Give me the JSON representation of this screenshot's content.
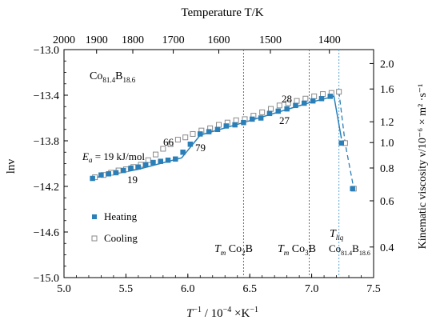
{
  "chart_data": {
    "type": "scatter",
    "title": "",
    "xlabel_main": "T",
    "xlabel_sup": "−1",
    "xlabel_rest": " / 10",
    "xlabel_sup2": "−4",
    "xlabel_unit": " ×K",
    "xlabel_sup3": "−1",
    "ylabel": "lnν",
    "top_label": "Temperature T/K",
    "right_label": "Kinematic viscosity ν/10⁻⁶ × m² ·s⁻¹",
    "xlim": [
      5.0,
      7.5
    ],
    "ylim": [
      -15.0,
      -13.0
    ],
    "x_ticks": [
      "5.0",
      "5.5",
      "6.0",
      "6.5",
      "7.0",
      "7.5"
    ],
    "y_ticks": [
      "−13.0",
      "−13.4",
      "−13.8",
      "−14.2",
      "−14.6",
      "−15.0"
    ],
    "top_ticks": [
      "2000",
      "1900",
      "1800",
      "1700",
      "1600",
      "1500",
      "1400"
    ],
    "right_ticks": [
      "2.0",
      "1.6",
      "1.2",
      "1.0",
      "0.8",
      "0.6",
      "0.4"
    ],
    "composition": {
      "base": "Co",
      "sub1": "81.4",
      "mid": "B",
      "sub2": "18.6"
    },
    "annotations": {
      "ea_prefix": "E",
      "ea_sub": "a",
      "ea_rest": " = 19 kJ/mol",
      "n19": "19",
      "n66": "66",
      "n79": "79",
      "n28": "28",
      "n27": "27"
    },
    "vlines": [
      {
        "x": 6.45,
        "color": "#6f6f6f",
        "label_T": "T",
        "label_sub": "m",
        "label_rest": " Co",
        "label_sub2": "2",
        "label_end": "B"
      },
      {
        "x": 6.98,
        "color": "#6f6f6f",
        "label_T": "T",
        "label_sub": "m",
        "label_rest": " Co",
        "label_sub2": "3",
        "label_end": "B"
      },
      {
        "x": 7.22,
        "color": "#5aa7d6",
        "label_T": "T",
        "label_sub": "liq",
        "label_rest": "Co",
        "label_sub2": "81.4",
        "label_end": "B",
        "label_sub3": "18.6"
      }
    ],
    "legend": {
      "heating": "Heating",
      "cooling": "Cooling"
    },
    "colors": {
      "heating": "#2a7fb8",
      "cooling": "#8a8a8a"
    },
    "series": [
      {
        "name": "Heating",
        "x": [
          5.23,
          5.3,
          5.36,
          5.42,
          5.48,
          5.54,
          5.6,
          5.66,
          5.72,
          5.78,
          5.84,
          5.9,
          5.96,
          6.02,
          6.1,
          6.17,
          6.24,
          6.31,
          6.38,
          6.45,
          6.52,
          6.59,
          6.66,
          6.73,
          6.8,
          6.87,
          6.94,
          7.01,
          7.08,
          7.15,
          7.24,
          7.33
        ],
        "y": [
          -14.13,
          -14.1,
          -14.09,
          -14.08,
          -14.06,
          -14.04,
          -14.03,
          -14.01,
          -13.99,
          -13.98,
          -13.97,
          -13.96,
          -13.9,
          -13.83,
          -13.74,
          -13.72,
          -13.7,
          -13.67,
          -13.66,
          -13.64,
          -13.61,
          -13.6,
          -13.56,
          -13.54,
          -13.52,
          -13.49,
          -13.47,
          -13.45,
          -13.43,
          -13.41,
          -13.82,
          -14.22
        ]
      },
      {
        "name": "Cooling",
        "x": [
          5.25,
          5.32,
          5.38,
          5.44,
          5.5,
          5.56,
          5.62,
          5.68,
          5.74,
          5.8,
          5.86,
          5.92,
          5.98,
          6.04,
          6.11,
          6.18,
          6.25,
          6.32,
          6.39,
          6.46,
          6.53,
          6.6,
          6.67,
          6.74,
          6.81,
          6.88,
          6.95,
          7.02,
          7.09,
          7.16,
          7.22,
          7.27,
          7.34
        ],
        "y": [
          -14.12,
          -14.1,
          -14.08,
          -14.06,
          -14.05,
          -14.03,
          -14.01,
          -13.97,
          -13.92,
          -13.87,
          -13.83,
          -13.79,
          -13.77,
          -13.74,
          -13.71,
          -13.69,
          -13.66,
          -13.64,
          -13.62,
          -13.61,
          -13.58,
          -13.55,
          -13.52,
          -13.49,
          -13.47,
          -13.45,
          -13.43,
          -13.41,
          -13.39,
          -13.38,
          -13.37,
          -13.82,
          -14.22
        ]
      }
    ],
    "heating_fit_line": {
      "x": [
        5.22,
        5.6,
        5.95,
        6.1,
        6.45,
        7.0,
        7.18,
        7.24
      ],
      "y": [
        -14.13,
        -14.05,
        -13.95,
        -13.75,
        -13.64,
        -13.46,
        -13.41,
        -13.78
      ]
    },
    "cooling_dashed_line": {
      "x": [
        7.22,
        7.27,
        7.34
      ],
      "y": [
        -13.37,
        -13.82,
        -14.22
      ]
    },
    "right_axis_nu": [
      2.0,
      1.6,
      1.2,
      1.0,
      0.8,
      0.6,
      0.4
    ],
    "top_axis_T": [
      2000,
      1900,
      1800,
      1700,
      1600,
      1500,
      1400
    ]
  }
}
